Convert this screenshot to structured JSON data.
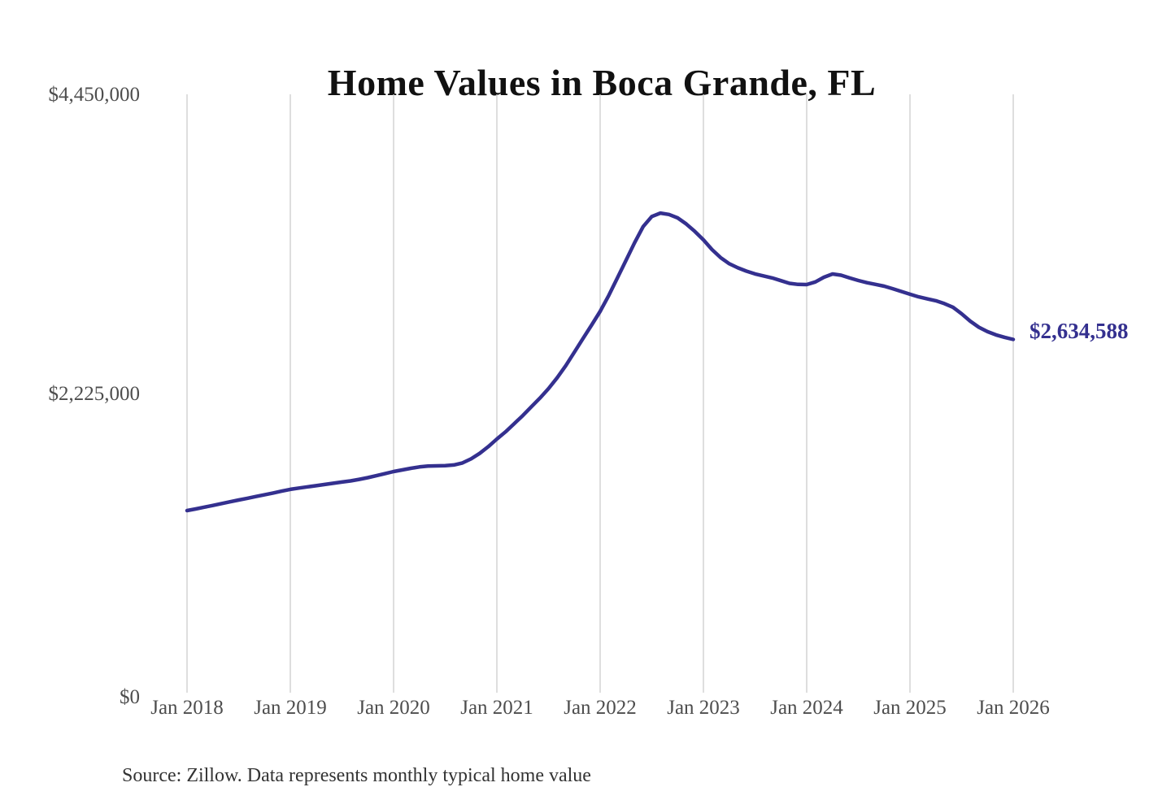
{
  "chart_data": {
    "type": "line",
    "title": "Home Values in Boca Grande, FL",
    "source_note": "Source: Zillow. Data represents monthly typical home value",
    "series_name": "Monthly typical home value",
    "end_label": "$2,634,588",
    "latest_value": 2634588,
    "legend": "none",
    "grid": "vertical-only",
    "ylim": [
      0,
      4450000
    ],
    "y_ticks": [
      4450000,
      2225000,
      0
    ],
    "y_tick_labels": [
      "$4,450,000",
      "$2,225,000",
      "$0"
    ],
    "x_tick_labels": [
      "Jan 2018",
      "Jan 2019",
      "Jan 2020",
      "Jan 2021",
      "Jan 2022",
      "Jan 2023",
      "Jan 2024",
      "Jan 2025",
      "Jan 2026"
    ],
    "colors": {
      "line": "#34308f",
      "end_label": "#34308f",
      "gridline": "#cccccc",
      "tick_text": "#4d4d4d",
      "title_text": "#111111",
      "source_text": "#333333"
    },
    "months": [
      "2018-01",
      "2018-02",
      "2018-03",
      "2018-04",
      "2018-05",
      "2018-06",
      "2018-07",
      "2018-08",
      "2018-09",
      "2018-10",
      "2018-11",
      "2018-12",
      "2019-01",
      "2019-02",
      "2019-03",
      "2019-04",
      "2019-05",
      "2019-06",
      "2019-07",
      "2019-08",
      "2019-09",
      "2019-10",
      "2019-11",
      "2019-12",
      "2020-01",
      "2020-02",
      "2020-03",
      "2020-04",
      "2020-05",
      "2020-06",
      "2020-07",
      "2020-08",
      "2020-09",
      "2020-10",
      "2020-11",
      "2020-12",
      "2021-01",
      "2021-02",
      "2021-03",
      "2021-04",
      "2021-05",
      "2021-06",
      "2021-07",
      "2021-08",
      "2021-09",
      "2021-10",
      "2021-11",
      "2021-12",
      "2022-01",
      "2022-02",
      "2022-03",
      "2022-04",
      "2022-05",
      "2022-06",
      "2022-07",
      "2022-08",
      "2022-09",
      "2022-10",
      "2022-11",
      "2022-12",
      "2023-01",
      "2023-02",
      "2023-03",
      "2023-04",
      "2023-05",
      "2023-06",
      "2023-07",
      "2023-08",
      "2023-09",
      "2023-10",
      "2023-11",
      "2023-12",
      "2024-01",
      "2024-02",
      "2024-03",
      "2024-04",
      "2024-05",
      "2024-06",
      "2024-07",
      "2024-08",
      "2024-09",
      "2024-10",
      "2024-11",
      "2024-12",
      "2025-01",
      "2025-02",
      "2025-03",
      "2025-04",
      "2025-05",
      "2025-06",
      "2025-07",
      "2025-08",
      "2025-09",
      "2025-10",
      "2025-11",
      "2025-12",
      "2026-01"
    ],
    "values": [
      1367000,
      1379000,
      1392000,
      1405000,
      1419000,
      1432000,
      1445000,
      1458000,
      1471000,
      1484000,
      1497000,
      1511000,
      1524000,
      1534000,
      1543000,
      1551000,
      1560000,
      1569000,
      1578000,
      1587000,
      1598000,
      1611000,
      1625000,
      1640000,
      1656000,
      1668000,
      1680000,
      1690000,
      1696000,
      1698000,
      1700000,
      1705000,
      1720000,
      1750000,
      1790000,
      1840000,
      1897000,
      1950000,
      2010000,
      2070000,
      2135000,
      2200000,
      2270000,
      2350000,
      2440000,
      2540000,
      2640000,
      2740000,
      2842000,
      2960000,
      3090000,
      3220000,
      3350000,
      3470000,
      3545000,
      3570000,
      3560000,
      3535000,
      3490000,
      3435000,
      3372000,
      3300000,
      3240000,
      3195000,
      3165000,
      3140000,
      3120000,
      3105000,
      3090000,
      3070000,
      3050000,
      3042000,
      3041000,
      3060000,
      3095000,
      3119000,
      3110000,
      3090000,
      3071000,
      3055000,
      3042000,
      3029000,
      3010000,
      2990000,
      2969000,
      2950000,
      2935000,
      2921000,
      2900000,
      2873000,
      2825000,
      2770000,
      2725000,
      2692000,
      2668000,
      2650000,
      2634588
    ]
  }
}
